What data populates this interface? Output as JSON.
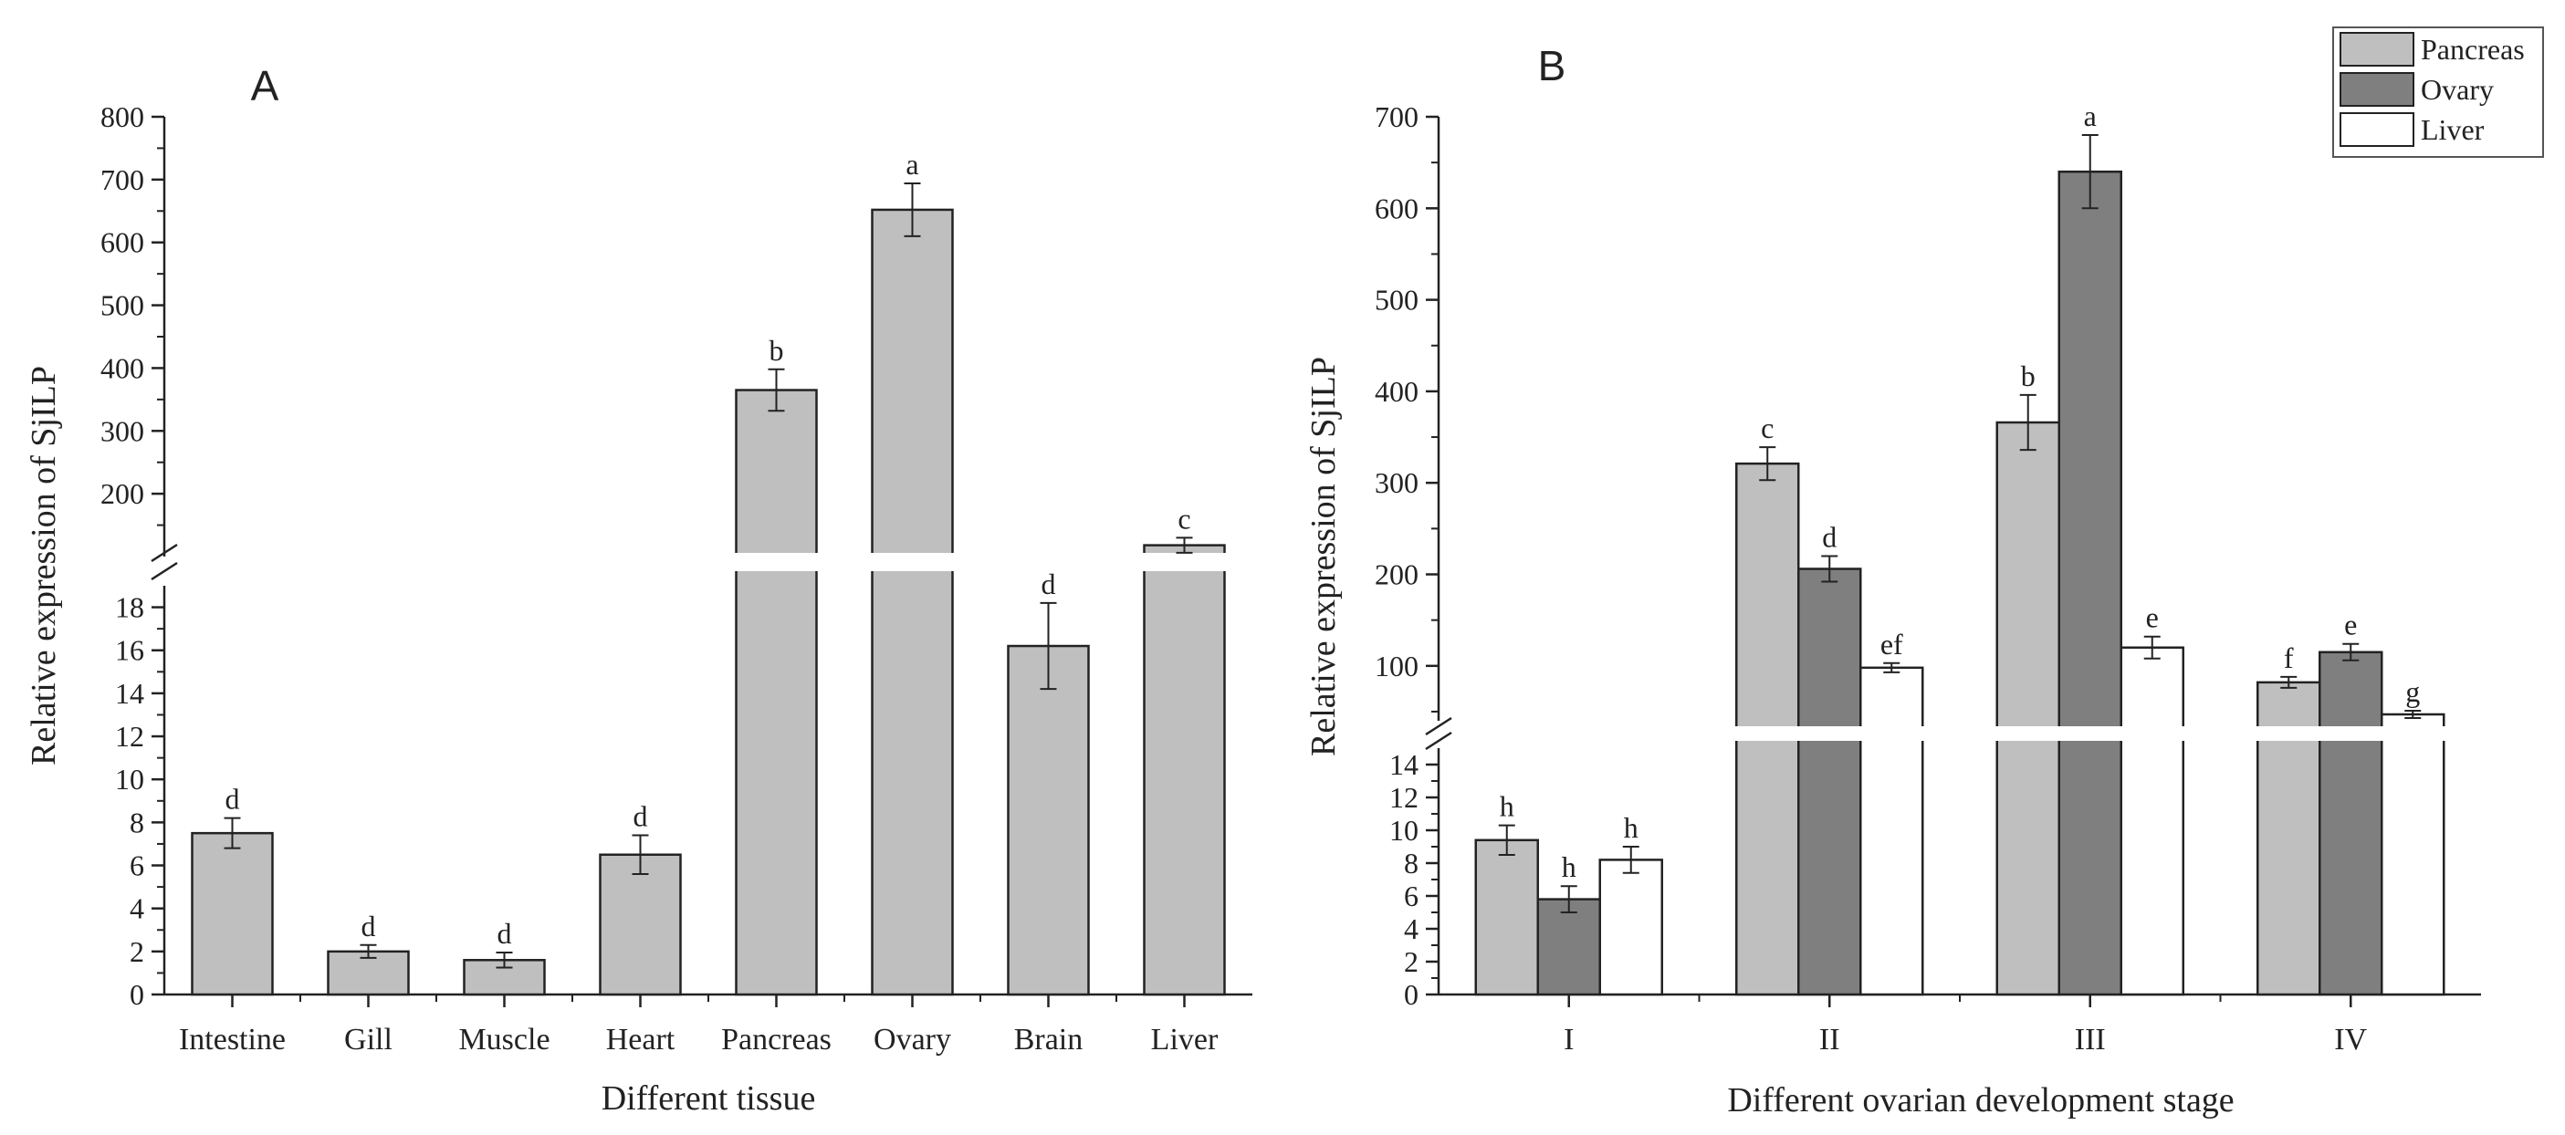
{
  "chart_data": [
    {
      "type": "bar",
      "panel": "A",
      "xlabel": "Different tissue",
      "ylabel": "Relative expression of SjILP",
      "categories": [
        "Intestine",
        "Gill",
        "Muscle",
        "Heart",
        "Pancreas",
        "Ovary",
        "Brain",
        "Liver"
      ],
      "values": [
        7.5,
        2.0,
        1.6,
        6.5,
        365,
        652,
        16.2,
        118
      ],
      "errors": [
        0.7,
        0.3,
        0.35,
        0.9,
        33,
        42,
        2.0,
        12
      ],
      "significance": [
        "d",
        "d",
        "d",
        "d",
        "b",
        "a",
        "d",
        "c"
      ],
      "color": "#bfbfbf",
      "broken_axis": {
        "lower_range": [
          0,
          19
        ],
        "lower_ticks": [
          "0",
          "2",
          "4",
          "6",
          "8",
          "10",
          "12",
          "14",
          "16",
          "18"
        ],
        "upper_range": [
          100,
          800
        ],
        "upper_ticks": [
          "200",
          "300",
          "400",
          "500",
          "600",
          "700",
          "800"
        ]
      }
    },
    {
      "type": "bar",
      "panel": "B",
      "xlabel": "Different ovarian development stage",
      "ylabel": "Relative expression of SjILP",
      "categories": [
        "I",
        "II",
        "III",
        "IV"
      ],
      "series": [
        {
          "name": "Pancreas",
          "color": "#bfbfbf",
          "values": [
            9.4,
            321,
            366,
            82
          ],
          "errors": [
            0.9,
            18,
            30,
            6
          ],
          "significance": [
            "h",
            "c",
            "b",
            "f"
          ]
        },
        {
          "name": "Ovary",
          "color": "#7f7f7f",
          "values": [
            5.8,
            206,
            640,
            115
          ],
          "errors": [
            0.8,
            14,
            40,
            9
          ],
          "significance": [
            "h",
            "d",
            "a",
            "e"
          ]
        },
        {
          "name": "Liver",
          "color": "#ffffff",
          "values": [
            8.2,
            98,
            120,
            47
          ],
          "errors": [
            0.8,
            5,
            12,
            4
          ],
          "significance": [
            "h",
            "ef",
            "e",
            "g"
          ]
        }
      ],
      "broken_axis": {
        "lower_range": [
          0,
          15
        ],
        "lower_ticks": [
          "0",
          "2",
          "4",
          "6",
          "8",
          "10",
          "12",
          "14"
        ],
        "upper_range": [
          40,
          700
        ],
        "upper_ticks": [
          "100",
          "200",
          "300",
          "400",
          "500",
          "600",
          "700"
        ]
      },
      "legend": "top-right"
    }
  ]
}
